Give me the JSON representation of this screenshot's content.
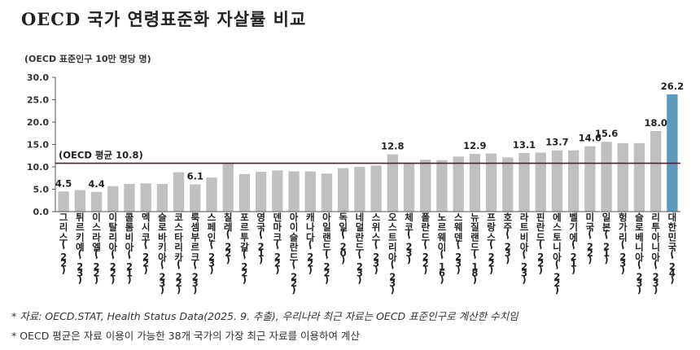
{
  "title": "OECD 국가 연령표준화 자살률 비교",
  "unit_label": "(OECD 표준인구 10만 명당 명)",
  "notes": [
    "* 자료: OECD.STAT, Health Status Data(2025. 9. 추출), 우리나라 최근 자료는 OECD 표준인구로 계산한 수치임",
    "* OECD 평균은 자료 이용이 가능한 38개 국가의 가장 최근 자료를 이용하여 계산"
  ],
  "colors": {
    "bar": "#c0c0c0",
    "highlight": "#5b9bbd",
    "average_line": "#4a2535",
    "axis": "#555555"
  },
  "chart_data": {
    "type": "bar",
    "title": "OECD 국가 연령표준화 자살률 비교",
    "ylabel": "(OECD 표준인구 10만 명당 명)",
    "ylim": [
      0,
      30
    ],
    "yticks": [
      "0.0",
      "5.0",
      "10.0",
      "15.0",
      "20.0",
      "25.0",
      "30.0"
    ],
    "grid": false,
    "categories": [
      "그리스('22)",
      "튀르키예('23)",
      "이스라엘('22)",
      "이탈리아('22)",
      "콜롬비아('21)",
      "멕시코('22)",
      "슬로바키아('23)",
      "코스타리카('22)",
      "룩셈부르크('23)",
      "스페인('23)",
      "칠레('22)",
      "포르투갈('22)",
      "영국('21)",
      "덴마크('22)",
      "아이슬란드('22)",
      "캐나다('22)",
      "아일랜드('22)",
      "독일('20)",
      "네덜란드('23)",
      "스위스('23)",
      "오스트리아('23)",
      "체코('23)",
      "폴란드('22)",
      "노르웨이('16)",
      "스웨덴('23)",
      "뉴질랜드('18)",
      "프랑스('22)",
      "호주('23)",
      "라트비아('23)",
      "핀란드('22)",
      "에스토니아('22)",
      "벨기에('21)",
      "미국('22)",
      "일본('21)",
      "헝가리('23)",
      "슬로베니아('23)",
      "리투아니아('23)",
      "대한민국('24)"
    ],
    "values": [
      4.5,
      4.8,
      4.4,
      5.7,
      6.2,
      6.3,
      6.2,
      8.8,
      6.1,
      7.6,
      10.9,
      8.4,
      8.9,
      9.2,
      9.0,
      9.0,
      8.5,
      9.7,
      10.0,
      10.3,
      12.8,
      10.9,
      11.6,
      11.5,
      12.3,
      12.9,
      13.0,
      12.1,
      13.1,
      13.2,
      13.7,
      13.7,
      14.6,
      15.6,
      15.3,
      15.3,
      18.0,
      26.2
    ],
    "data_labels": [
      {
        "category": "그리스('22)",
        "text": "4.5"
      },
      {
        "category": "이스라엘('22)",
        "text": "4.4"
      },
      {
        "category": "룩셈부르크('23)",
        "text": "6.1"
      },
      {
        "category": "오스트리아('23)",
        "text": "12.8"
      },
      {
        "category": "뉴질랜드('18)",
        "text": "12.9"
      },
      {
        "category": "라트비아('23)",
        "text": "13.1"
      },
      {
        "category": "에스토니아('22)",
        "text": "13.7"
      },
      {
        "category": "미국('22)",
        "text": "14.6"
      },
      {
        "category": "일본('21)",
        "text": "15.6"
      },
      {
        "category": "리투아니아('23)",
        "text": "18.0"
      },
      {
        "category": "대한민국('24)",
        "text": "26.2"
      }
    ],
    "highlight": "대한민국('24)",
    "average": {
      "label_prefix": "(OECD ",
      "label_bold": "평균",
      "label_value": " 10.8)",
      "value": 10.8
    }
  }
}
